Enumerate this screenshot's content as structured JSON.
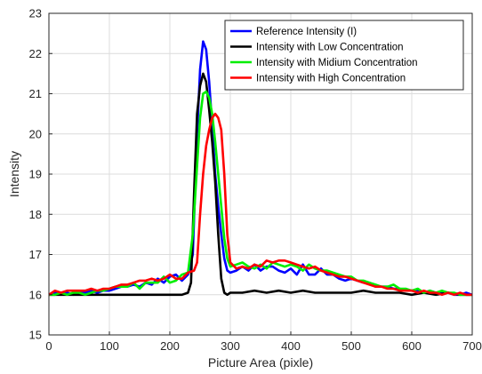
{
  "chart_data": {
    "type": "line",
    "title": "",
    "xlabel": "Picture Area (pixle)",
    "ylabel": "Intensity",
    "xlim": [
      0,
      700
    ],
    "ylim": [
      15,
      23
    ],
    "xticks": [
      0,
      100,
      200,
      300,
      400,
      500,
      600,
      700
    ],
    "yticks": [
      15,
      16,
      17,
      18,
      19,
      20,
      21,
      22,
      23
    ],
    "grid": true,
    "legend_position": "top-right",
    "series": [
      {
        "name": "Reference Intensity (I)",
        "color": "#0000ff",
        "x": [
          0,
          10,
          20,
          30,
          40,
          50,
          60,
          70,
          80,
          90,
          100,
          110,
          120,
          130,
          140,
          150,
          160,
          170,
          180,
          190,
          200,
          210,
          220,
          230,
          238,
          245,
          250,
          255,
          260,
          265,
          270,
          275,
          280,
          285,
          290,
          295,
          300,
          310,
          320,
          330,
          340,
          350,
          360,
          370,
          380,
          390,
          400,
          410,
          420,
          430,
          440,
          450,
          460,
          470,
          480,
          490,
          500,
          510,
          520,
          530,
          540,
          550,
          560,
          570,
          580,
          590,
          600,
          610,
          620,
          630,
          640,
          650,
          660,
          670,
          680,
          690,
          700
        ],
        "y": [
          16.0,
          16.05,
          16.0,
          16.05,
          16.0,
          16.05,
          16.05,
          16.1,
          16.05,
          16.1,
          16.1,
          16.15,
          16.2,
          16.2,
          16.25,
          16.2,
          16.3,
          16.25,
          16.4,
          16.3,
          16.45,
          16.5,
          16.35,
          16.5,
          17.0,
          20.0,
          21.6,
          22.3,
          22.1,
          21.3,
          20.2,
          19.0,
          18.2,
          17.5,
          16.9,
          16.6,
          16.55,
          16.6,
          16.7,
          16.6,
          16.75,
          16.6,
          16.7,
          16.7,
          16.6,
          16.55,
          16.65,
          16.5,
          16.75,
          16.5,
          16.5,
          16.65,
          16.5,
          16.5,
          16.4,
          16.35,
          16.4,
          16.35,
          16.3,
          16.3,
          16.2,
          16.2,
          16.2,
          16.15,
          16.15,
          16.1,
          16.1,
          16.1,
          16.05,
          16.1,
          16.05,
          16.05,
          16.05,
          16.0,
          16.0,
          16.05,
          16.0
        ]
      },
      {
        "name": "Intensity with Low Concentration",
        "color": "#000000",
        "x": [
          0,
          20,
          40,
          60,
          80,
          100,
          120,
          140,
          160,
          180,
          200,
          220,
          230,
          235,
          240,
          245,
          250,
          255,
          260,
          265,
          270,
          275,
          280,
          285,
          290,
          295,
          300,
          320,
          340,
          360,
          380,
          400,
          420,
          440,
          460,
          480,
          500,
          520,
          540,
          560,
          580,
          600,
          620,
          640,
          660,
          680,
          700
        ],
        "y": [
          16.0,
          16.0,
          16.0,
          16.0,
          16.0,
          16.0,
          16.0,
          16.0,
          16.0,
          16.0,
          16.0,
          16.0,
          16.05,
          16.3,
          18.5,
          20.5,
          21.2,
          21.5,
          21.3,
          20.6,
          19.8,
          18.8,
          17.5,
          16.4,
          16.05,
          16.0,
          16.05,
          16.05,
          16.1,
          16.05,
          16.1,
          16.05,
          16.1,
          16.05,
          16.05,
          16.05,
          16.05,
          16.1,
          16.05,
          16.05,
          16.05,
          16.0,
          16.05,
          16.0,
          16.05,
          16.0,
          16.0
        ]
      },
      {
        "name": "Intensity with Midium Concentration",
        "color": "#00ee00",
        "x": [
          0,
          10,
          20,
          30,
          40,
          50,
          60,
          70,
          80,
          90,
          100,
          110,
          120,
          130,
          140,
          150,
          160,
          170,
          180,
          190,
          200,
          210,
          220,
          230,
          238,
          245,
          250,
          255,
          260,
          265,
          270,
          275,
          280,
          285,
          290,
          295,
          300,
          310,
          320,
          330,
          340,
          350,
          360,
          370,
          380,
          390,
          400,
          410,
          420,
          430,
          440,
          450,
          460,
          470,
          480,
          490,
          500,
          510,
          520,
          530,
          540,
          550,
          560,
          570,
          580,
          590,
          600,
          610,
          620,
          630,
          640,
          650,
          660,
          670,
          680,
          690,
          700
        ],
        "y": [
          16.0,
          16.0,
          16.05,
          16.0,
          16.05,
          16.05,
          16.0,
          16.05,
          16.1,
          16.1,
          16.15,
          16.2,
          16.2,
          16.2,
          16.3,
          16.15,
          16.3,
          16.3,
          16.3,
          16.45,
          16.3,
          16.35,
          16.5,
          16.55,
          17.5,
          19.2,
          20.4,
          21.0,
          21.05,
          20.9,
          20.5,
          19.8,
          19.0,
          18.2,
          17.4,
          16.9,
          16.7,
          16.75,
          16.8,
          16.7,
          16.65,
          16.75,
          16.65,
          16.8,
          16.75,
          16.7,
          16.75,
          16.7,
          16.6,
          16.75,
          16.65,
          16.6,
          16.6,
          16.55,
          16.5,
          16.45,
          16.45,
          16.35,
          16.35,
          16.3,
          16.25,
          16.2,
          16.2,
          16.25,
          16.15,
          16.15,
          16.1,
          16.15,
          16.05,
          16.1,
          16.05,
          16.1,
          16.05,
          16.05,
          16.0,
          16.0,
          16.0
        ]
      },
      {
        "name": "Intensity with High Concentration",
        "color": "#ff0000",
        "x": [
          0,
          10,
          20,
          30,
          40,
          50,
          60,
          70,
          80,
          90,
          100,
          110,
          120,
          130,
          140,
          150,
          160,
          170,
          180,
          190,
          200,
          210,
          220,
          230,
          240,
          245,
          250,
          255,
          260,
          265,
          270,
          275,
          280,
          285,
          290,
          295,
          300,
          310,
          320,
          330,
          340,
          350,
          360,
          370,
          380,
          390,
          400,
          410,
          420,
          430,
          440,
          450,
          460,
          470,
          480,
          490,
          500,
          510,
          520,
          530,
          540,
          550,
          560,
          570,
          580,
          590,
          600,
          610,
          620,
          630,
          640,
          650,
          660,
          670,
          680,
          690,
          700
        ],
        "y": [
          16.0,
          16.1,
          16.05,
          16.1,
          16.1,
          16.1,
          16.1,
          16.15,
          16.1,
          16.15,
          16.15,
          16.2,
          16.25,
          16.25,
          16.3,
          16.35,
          16.35,
          16.4,
          16.35,
          16.4,
          16.5,
          16.4,
          16.4,
          16.55,
          16.6,
          16.8,
          18.0,
          19.0,
          19.7,
          20.1,
          20.4,
          20.5,
          20.4,
          20.1,
          19.0,
          17.5,
          16.8,
          16.65,
          16.7,
          16.65,
          16.75,
          16.7,
          16.85,
          16.8,
          16.85,
          16.85,
          16.8,
          16.75,
          16.7,
          16.65,
          16.7,
          16.6,
          16.55,
          16.5,
          16.45,
          16.45,
          16.4,
          16.35,
          16.3,
          16.25,
          16.2,
          16.2,
          16.15,
          16.15,
          16.1,
          16.1,
          16.1,
          16.05,
          16.1,
          16.05,
          16.05,
          16.0,
          16.05,
          16.0,
          16.05,
          16.0,
          16.0
        ]
      }
    ]
  }
}
